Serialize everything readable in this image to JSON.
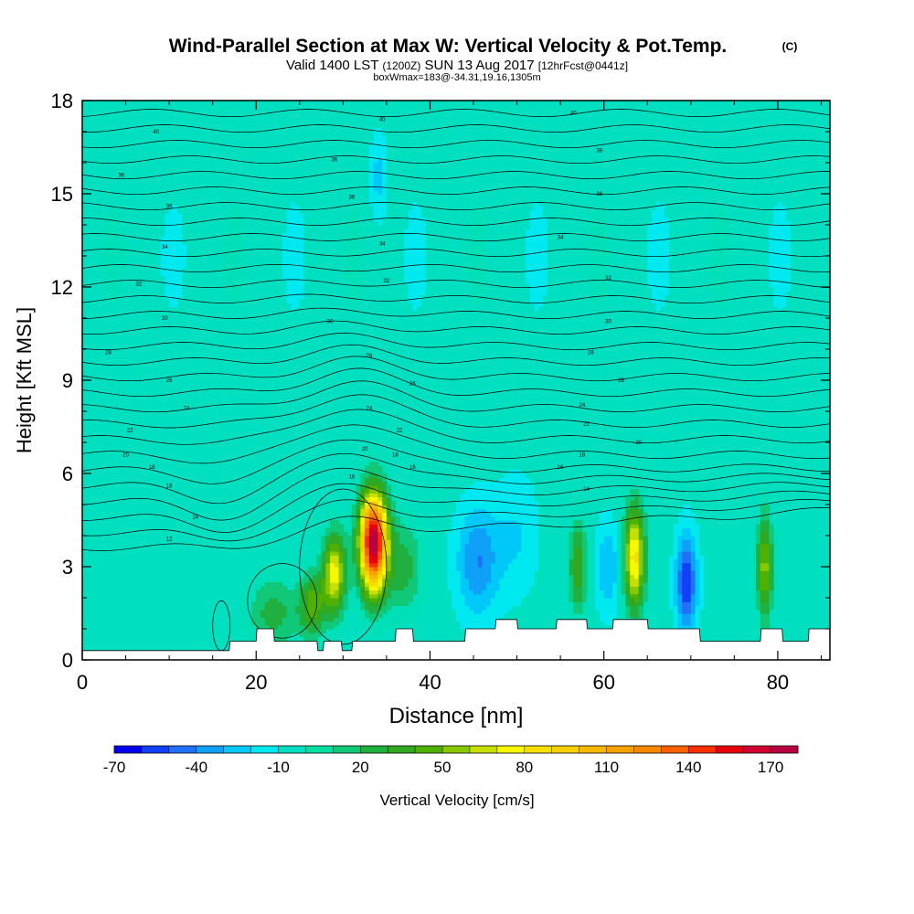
{
  "chart_data": {
    "type": "heatmap",
    "title": "Wind-Parallel Section at Max W: Vertical Velocity & Pot.Temp.",
    "title_mark": "(C)",
    "subtitle_main": "Valid 1400 LST",
    "subtitle_z": "(1200Z)",
    "subtitle_date": "SUN 13 Aug 2017",
    "subtitle_fcst": "[12hrFcst@0441z]",
    "subtitle2": "boxWmax=183@-34.31,19.16,1305m",
    "xlabel": "Distance [nm]",
    "ylabel": "Height [Kft MSL]",
    "xlim": [
      0,
      86
    ],
    "ylim": [
      0,
      18
    ],
    "xticks": [
      0,
      20,
      40,
      60,
      80
    ],
    "xtick_labels": [
      "0",
      "20",
      "40",
      "60",
      "80"
    ],
    "yticks": [
      0,
      3,
      6,
      9,
      12,
      15,
      18
    ],
    "ytick_labels": [
      "0",
      "3",
      "6",
      "9",
      "12",
      "15",
      "18"
    ],
    "background_value": -5,
    "updrafts": [
      {
        "x": 33.5,
        "y": 3.8,
        "peak": 183,
        "sx": 1.6,
        "sy": 1.6
      },
      {
        "x": 29.0,
        "y": 2.8,
        "peak": 80,
        "sx": 1.3,
        "sy": 1.3
      },
      {
        "x": 26.5,
        "y": 1.8,
        "peak": 50,
        "sx": 1.5,
        "sy": 1.0
      },
      {
        "x": 22.0,
        "y": 1.5,
        "peak": 30,
        "sx": 3.0,
        "sy": 1.2
      },
      {
        "x": 63.5,
        "y": 3.3,
        "peak": 90,
        "sx": 1.2,
        "sy": 1.7
      },
      {
        "x": 57.0,
        "y": 3.0,
        "peak": 45,
        "sx": 1.0,
        "sy": 1.5
      },
      {
        "x": 78.5,
        "y": 3.0,
        "peak": 60,
        "sx": 0.9,
        "sy": 1.7
      },
      {
        "x": 37.0,
        "y": 3.0,
        "peak": 30,
        "sx": 2.0,
        "sy": 1.5
      }
    ],
    "downdrafts": [
      {
        "x": 69.5,
        "y": 2.5,
        "peak": -55,
        "sx": 1.2,
        "sy": 1.6
      },
      {
        "x": 45.5,
        "y": 3.2,
        "peak": -35,
        "sx": 2.5,
        "sy": 1.8
      },
      {
        "x": 60.5,
        "y": 3.0,
        "peak": -25,
        "sx": 1.5,
        "sy": 1.5
      },
      {
        "x": 34.0,
        "y": 15.5,
        "peak": -20,
        "sx": 1.0,
        "sy": 1.5
      },
      {
        "x": 50.0,
        "y": 4.0,
        "peak": -15,
        "sx": 2.5,
        "sy": 2.0
      }
    ],
    "isentrope_labels": [
      {
        "x": 8.5,
        "y": 17.0,
        "text": "40"
      },
      {
        "x": 34.5,
        "y": 17.4,
        "text": "40"
      },
      {
        "x": 56.5,
        "y": 17.6,
        "text": "40"
      },
      {
        "x": 4.5,
        "y": 15.6,
        "text": "36"
      },
      {
        "x": 29.0,
        "y": 16.1,
        "text": "36"
      },
      {
        "x": 59.5,
        "y": 16.4,
        "text": "38"
      },
      {
        "x": 10.0,
        "y": 14.6,
        "text": "36"
      },
      {
        "x": 31.0,
        "y": 14.9,
        "text": "36"
      },
      {
        "x": 59.5,
        "y": 15.0,
        "text": "36"
      },
      {
        "x": 9.5,
        "y": 13.3,
        "text": "34"
      },
      {
        "x": 34.5,
        "y": 13.4,
        "text": "34"
      },
      {
        "x": 55.0,
        "y": 13.6,
        "text": "34"
      },
      {
        "x": 6.5,
        "y": 12.1,
        "text": "32"
      },
      {
        "x": 35.0,
        "y": 12.2,
        "text": "32"
      },
      {
        "x": 60.5,
        "y": 12.3,
        "text": "32"
      },
      {
        "x": 9.5,
        "y": 11.0,
        "text": "30"
      },
      {
        "x": 28.5,
        "y": 10.9,
        "text": "30"
      },
      {
        "x": 60.5,
        "y": 10.9,
        "text": "30"
      },
      {
        "x": 3.0,
        "y": 9.9,
        "text": "28"
      },
      {
        "x": 33.0,
        "y": 9.8,
        "text": "28"
      },
      {
        "x": 58.5,
        "y": 9.9,
        "text": "28"
      },
      {
        "x": 10.0,
        "y": 9.0,
        "text": "26"
      },
      {
        "x": 38.0,
        "y": 8.9,
        "text": "26"
      },
      {
        "x": 62.0,
        "y": 9.0,
        "text": "26"
      },
      {
        "x": 12.0,
        "y": 8.1,
        "text": "24"
      },
      {
        "x": 33.0,
        "y": 8.1,
        "text": "24"
      },
      {
        "x": 57.5,
        "y": 8.2,
        "text": "24"
      },
      {
        "x": 5.5,
        "y": 7.4,
        "text": "22"
      },
      {
        "x": 36.5,
        "y": 7.4,
        "text": "22"
      },
      {
        "x": 58.0,
        "y": 7.6,
        "text": "22"
      },
      {
        "x": 5.0,
        "y": 6.6,
        "text": "20"
      },
      {
        "x": 32.5,
        "y": 6.8,
        "text": "20"
      },
      {
        "x": 64.0,
        "y": 7.0,
        "text": "20"
      },
      {
        "x": 8.0,
        "y": 6.2,
        "text": "18"
      },
      {
        "x": 36.0,
        "y": 6.6,
        "text": "18"
      },
      {
        "x": 57.5,
        "y": 6.6,
        "text": "18"
      },
      {
        "x": 10.0,
        "y": 5.6,
        "text": "16"
      },
      {
        "x": 31.0,
        "y": 5.9,
        "text": "16"
      },
      {
        "x": 38.0,
        "y": 6.2,
        "text": "16"
      },
      {
        "x": 55.0,
        "y": 6.2,
        "text": "16"
      },
      {
        "x": 13.0,
        "y": 4.6,
        "text": "14"
      },
      {
        "x": 58.0,
        "y": 5.5,
        "text": "14"
      },
      {
        "x": 10.0,
        "y": 3.9,
        "text": "12"
      }
    ],
    "terrain": [
      [
        0,
        0.3
      ],
      [
        15,
        0.3
      ],
      [
        16.9,
        0.3
      ],
      [
        17.0,
        0.6
      ],
      [
        18.5,
        0.6
      ],
      [
        18.6,
        0.6
      ],
      [
        20.0,
        0.6
      ],
      [
        20.1,
        1.0
      ],
      [
        22.0,
        1.0
      ],
      [
        22.1,
        0.6
      ],
      [
        27.0,
        0.6
      ],
      [
        27.1,
        0.3
      ],
      [
        27.7,
        0.3
      ],
      [
        27.8,
        0.6
      ],
      [
        29.8,
        0.6
      ],
      [
        29.9,
        0.3
      ],
      [
        31.0,
        0.3
      ],
      [
        31.1,
        0.6
      ],
      [
        36.0,
        0.6
      ],
      [
        36.1,
        1.0
      ],
      [
        38.0,
        1.0
      ],
      [
        38.1,
        0.6
      ],
      [
        44.0,
        0.6
      ],
      [
        44.1,
        1.0
      ],
      [
        47.5,
        1.0
      ],
      [
        47.6,
        1.3
      ],
      [
        50.0,
        1.3
      ],
      [
        50.1,
        1.0
      ],
      [
        54.5,
        1.0
      ],
      [
        54.6,
        1.3
      ],
      [
        58.0,
        1.3
      ],
      [
        58.1,
        1.0
      ],
      [
        61.0,
        1.0
      ],
      [
        61.1,
        1.3
      ],
      [
        65.0,
        1.3
      ],
      [
        65.1,
        1.0
      ],
      [
        71.0,
        1.0
      ],
      [
        71.1,
        0.6
      ],
      [
        78.0,
        0.6
      ],
      [
        78.1,
        1.0
      ],
      [
        80.5,
        1.0
      ],
      [
        80.6,
        0.6
      ],
      [
        83.5,
        0.6
      ],
      [
        83.6,
        1.0
      ],
      [
        86,
        1.0
      ]
    ],
    "colorbar": {
      "label": "Vertical Velocity [cm/s]",
      "min": -70,
      "step": 10,
      "labels": [
        "-70",
        "-40",
        "-10",
        "20",
        "50",
        "80",
        "110",
        "140",
        "170"
      ],
      "colors": [
        "#0000f0",
        "#1040f8",
        "#2070f8",
        "#0fa0f8",
        "#00c8f8",
        "#00e8f0",
        "#00e0c0",
        "#00e0a0",
        "#10c878",
        "#20b040",
        "#30a820",
        "#50b000",
        "#88c800",
        "#c8e000",
        "#f8f800",
        "#f8e000",
        "#f8d000",
        "#f8b800",
        "#f8a000",
        "#f88800",
        "#f86000",
        "#f83000",
        "#e80010",
        "#d00030",
        "#b80040"
      ]
    }
  }
}
